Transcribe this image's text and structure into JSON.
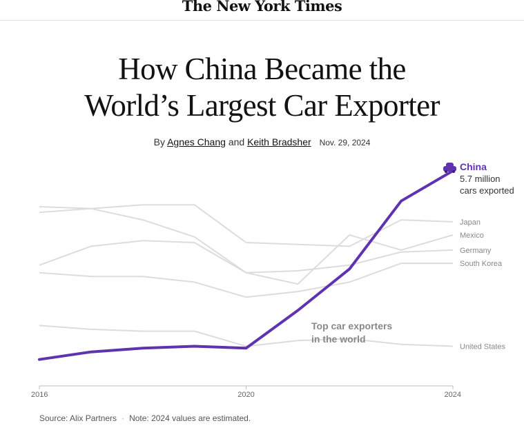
{
  "masthead": {
    "title": "The New York Times"
  },
  "article": {
    "headline_line1": "How China Became the",
    "headline_line2": "World’s Largest Car Exporter",
    "byline_prefix": "By",
    "author1": "Agnes Chang",
    "byline_and": "and",
    "author2": "Keith Bradsher",
    "date": "Nov. 29, 2024"
  },
  "chart_data": {
    "type": "line",
    "title": "",
    "xlabel": "",
    "ylabel": "",
    "x": [
      2016,
      2017,
      2018,
      2019,
      2020,
      2021,
      2022,
      2023,
      2024
    ],
    "x_ticks": [
      "2016",
      "2020",
      "2024"
    ],
    "xlim": [
      2016,
      2024
    ],
    "ylim": [
      0,
      5.9
    ],
    "grid": false,
    "annotation": {
      "line1": "Top car exporters",
      "line2": "in the world"
    },
    "highlight_label": {
      "value_line1": "5.7 million",
      "value_line2": "cars exported"
    },
    "colors": {
      "highlight": "#5f33b0",
      "other": "#dcdcdc",
      "label": "#888888"
    },
    "series": [
      {
        "name": "China",
        "highlight": true,
        "values": [
          0.7,
          0.9,
          1.0,
          1.05,
          1.0,
          2.0,
          3.1,
          4.9,
          5.7
        ]
      },
      {
        "name": "Japan",
        "values": [
          4.6,
          4.7,
          4.8,
          4.8,
          3.8,
          3.75,
          3.7,
          4.4,
          4.35
        ]
      },
      {
        "name": "Mexico",
        "values": [
          3.2,
          3.7,
          3.85,
          3.8,
          3.0,
          2.7,
          4.0,
          3.6,
          4.0
        ]
      },
      {
        "name": "Germany",
        "values": [
          4.75,
          4.7,
          4.4,
          3.95,
          3.0,
          3.05,
          3.2,
          3.55,
          3.6
        ]
      },
      {
        "name": "South Korea",
        "values": [
          3.0,
          2.9,
          2.9,
          2.75,
          2.35,
          2.5,
          2.75,
          3.25,
          3.25
        ]
      },
      {
        "name": "United States",
        "values": [
          1.6,
          1.5,
          1.45,
          1.45,
          1.05,
          1.2,
          1.25,
          1.1,
          1.05
        ]
      }
    ]
  },
  "footer": {
    "source": "Source: Alix Partners",
    "note": "Note: 2024 values are estimated."
  }
}
